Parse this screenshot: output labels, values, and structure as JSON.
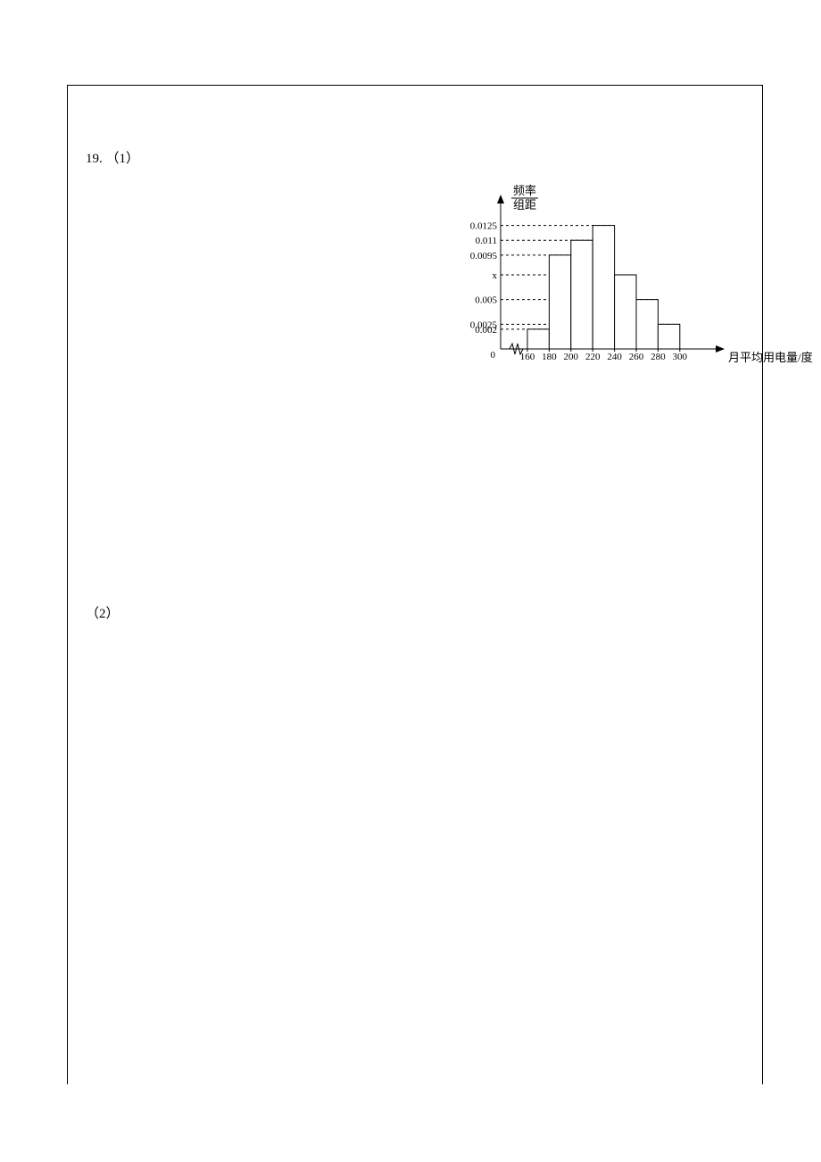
{
  "question": {
    "number": "19.",
    "part1": "（1）",
    "part2": "（2）"
  },
  "chart": {
    "type": "histogram",
    "y_title_top": "频率",
    "y_title_bottom": "组距",
    "x_title": "月平均用电量/度",
    "ylabels": [
      {
        "v": 0.0125,
        "text": "0.0125"
      },
      {
        "v": 0.011,
        "text": "0.011"
      },
      {
        "v": 0.0095,
        "text": "0.0095"
      },
      {
        "v": 0.005,
        "text": "0.005"
      },
      {
        "v": 0.0025,
        "text": "0.0025"
      },
      {
        "v": 0.002,
        "text": "0.002"
      }
    ],
    "x_variable_label": "x",
    "x_variable_value": 0.0075,
    "xlabels": [
      "160",
      "180",
      "200",
      "220",
      "240",
      "260",
      "280",
      "300"
    ],
    "origin_label": "0",
    "bar_width_units": 20,
    "bars": [
      {
        "x0": 160,
        "x1": 180,
        "h": 0.002
      },
      {
        "x0": 180,
        "x1": 200,
        "h": 0.0095
      },
      {
        "x0": 200,
        "x1": 220,
        "h": 0.011
      },
      {
        "x0": 220,
        "x1": 240,
        "h": 0.0125
      },
      {
        "x0": 240,
        "x1": 260,
        "h": 0.0075
      },
      {
        "x0": 260,
        "x1": 280,
        "h": 0.005
      },
      {
        "x0": 280,
        "x1": 300,
        "h": 0.0025
      }
    ],
    "xlim": [
      160,
      300
    ],
    "ylim": [
      0,
      0.014
    ],
    "colors": {
      "axis": "#000000",
      "bar_fill": "#ffffff",
      "bar_stroke": "#000000",
      "grid": "#000000",
      "text": "#000000",
      "background": "#ffffff"
    },
    "stroke_width": 1,
    "dash": "3,3",
    "font_size_labels": 11,
    "font_size_title": 13
  }
}
